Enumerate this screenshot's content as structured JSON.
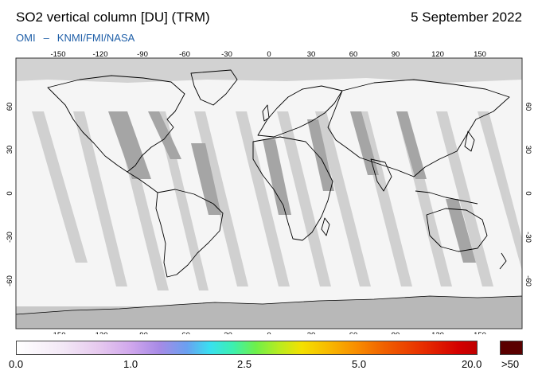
{
  "header": {
    "title": "SO2 vertical column [DU] (TRM)",
    "date": "5 September 2022",
    "source_left": "OMI",
    "source_sep": "–",
    "source_right": "KNMI/FMI/NASA"
  },
  "map": {
    "lon_ticks": [
      "-150",
      "-120",
      "-90",
      "-60",
      "-30",
      "0",
      "30",
      "60",
      "90",
      "120",
      "150"
    ],
    "lat_ticks": [
      "60",
      "30",
      "0",
      "-30",
      "-60"
    ],
    "colors": {
      "missing": "#c8c8c8",
      "swath": "#f5f5f5",
      "high_angle": "#a8a8a8",
      "coast": "#000000"
    }
  },
  "colorbar": {
    "labels": [
      "0.0",
      "1.0",
      "2.5",
      "5.0",
      "20.0"
    ],
    "overflow_label": ">50",
    "overflow_color": "#5a0000"
  }
}
